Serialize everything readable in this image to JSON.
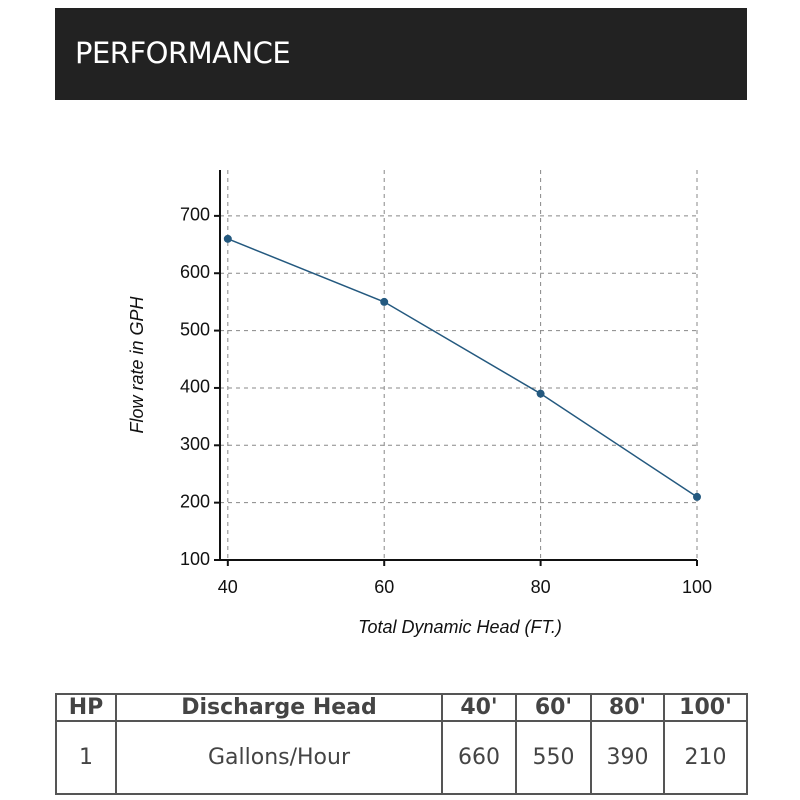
{
  "header": {
    "title": "PERFORMANCE"
  },
  "chart_data": {
    "type": "line",
    "x_label": "Total Dynamic Head (FT.)",
    "y_label": "Flow rate in GPH",
    "x": [
      40,
      60,
      80,
      100
    ],
    "values": [
      660,
      550,
      390,
      210
    ],
    "color": "#24597f",
    "xlim": [
      39,
      100
    ],
    "ylim": [
      100,
      780
    ],
    "xticks": [
      40,
      60,
      80,
      100
    ],
    "yticks": [
      100,
      200,
      300,
      400,
      500,
      600,
      700
    ],
    "grid": true
  },
  "table": {
    "header": [
      "HP",
      "Discharge Head",
      "40'",
      "60'",
      "80'",
      "100'"
    ],
    "rows": [
      [
        "1",
        "Gallons/Hour",
        "660",
        "550",
        "390",
        "210"
      ]
    ]
  }
}
